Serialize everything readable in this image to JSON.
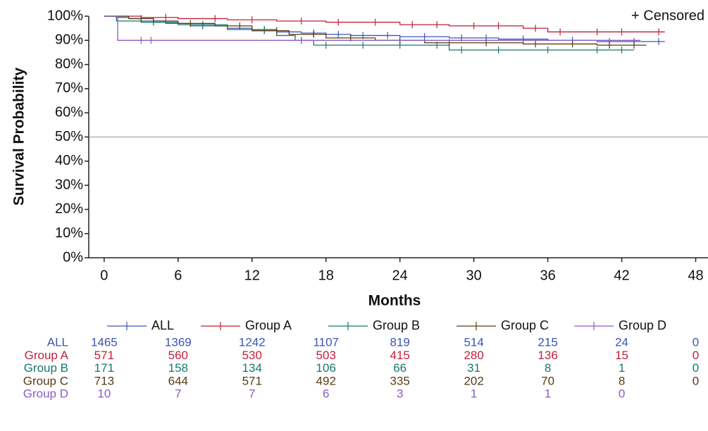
{
  "chart_data": {
    "type": "step",
    "ylabel": "Survival Probability",
    "xlabel": "Months",
    "censor_note": "+ Censored",
    "xlim": [
      -1.25,
      49
    ],
    "xticks": [
      0,
      6,
      12,
      18,
      24,
      30,
      36,
      42,
      48
    ],
    "ylim": [
      0,
      100
    ],
    "yticks": [
      {
        "value": 0,
        "label": "0%"
      },
      {
        "value": 10,
        "label": "10%"
      },
      {
        "value": 20,
        "label": "20%"
      },
      {
        "value": 30,
        "label": "30%"
      },
      {
        "value": 40,
        "label": "40%"
      },
      {
        "value": 50,
        "label": "50%"
      },
      {
        "value": 60,
        "label": "60%"
      },
      {
        "value": 70,
        "label": "70%"
      },
      {
        "value": 80,
        "label": "80%"
      },
      {
        "value": 90,
        "label": "90%"
      },
      {
        "value": 100,
        "label": "100%"
      }
    ],
    "reference_line": 50,
    "series": [
      {
        "name": "ALL",
        "color": "#3b55b5",
        "x": [
          0,
          1,
          2,
          3,
          5,
          7,
          10,
          12,
          14,
          16,
          18,
          20,
          24,
          28,
          32,
          36,
          40,
          45.5
        ],
        "values": [
          100,
          99.5,
          99,
          98,
          97,
          96,
          95,
          94,
          93.5,
          93,
          92.5,
          92,
          91.5,
          91,
          90.5,
          90,
          89.5,
          89.5
        ],
        "censored_x": [
          4,
          8,
          13,
          17,
          19,
          21,
          23,
          26,
          29,
          31,
          34,
          38,
          41,
          43,
          45
        ],
        "censored_y": [
          98,
          96,
          94,
          93,
          92.5,
          92,
          92,
          91.5,
          91,
          91,
          90.5,
          90,
          89.5,
          89.5,
          89.5
        ],
        "at_risk": [
          1465,
          1369,
          1242,
          1107,
          819,
          514,
          215,
          24,
          0
        ]
      },
      {
        "name": "Group A",
        "color": "#c41f3b",
        "x": [
          0,
          3,
          6,
          10,
          14,
          18,
          24,
          28,
          34,
          36,
          45.5
        ],
        "values": [
          100,
          99.5,
          99,
          98.5,
          98,
          97.5,
          96.5,
          96,
          95,
          93.5,
          93.5
        ],
        "censored_x": [
          5,
          9,
          12,
          16,
          19,
          22,
          25,
          27,
          30,
          32,
          35,
          37,
          40,
          42,
          45
        ],
        "censored_y": [
          99.5,
          99,
          98.5,
          98,
          97.5,
          97.5,
          96.5,
          96.5,
          96,
          96,
          95,
          93.5,
          93.5,
          93.5,
          93.5
        ],
        "at_risk": [
          571,
          560,
          530,
          503,
          415,
          280,
          136,
          15,
          0
        ]
      },
      {
        "name": "Group B",
        "color": "#17796d",
        "x": [
          0,
          1,
          3,
          6,
          10,
          14,
          15.5,
          17,
          28,
          43
        ],
        "values": [
          100,
          98,
          97.5,
          96.5,
          94.5,
          92,
          90,
          88,
          86,
          86
        ],
        "censored_x": [
          4,
          8,
          13,
          16,
          18,
          21,
          24,
          27,
          29,
          32,
          36,
          40,
          42
        ],
        "censored_y": [
          97.5,
          96.5,
          94.5,
          90,
          88,
          88,
          88,
          88,
          86,
          86,
          86,
          86,
          86
        ],
        "at_risk": [
          171,
          158,
          134,
          106,
          66,
          31,
          8,
          1,
          0
        ]
      },
      {
        "name": "Group C",
        "color": "#5b3b14",
        "x": [
          0,
          2,
          4,
          6,
          9,
          12,
          15,
          18,
          22,
          26,
          34,
          40,
          44
        ],
        "values": [
          100,
          99,
          98,
          97,
          96,
          94,
          92.5,
          91,
          90,
          89,
          88.5,
          88,
          88
        ],
        "censored_x": [
          3,
          7,
          11,
          14,
          17,
          20,
          24,
          28,
          31,
          35,
          38,
          41,
          43
        ],
        "censored_y": [
          99,
          97,
          96,
          94,
          92.5,
          91,
          90,
          89,
          89,
          88.5,
          88.5,
          88,
          88
        ],
        "at_risk": [
          713,
          644,
          571,
          492,
          335,
          202,
          70,
          8,
          0
        ]
      },
      {
        "name": "Group D",
        "color": "#8a5cc4",
        "x": [
          0,
          1.1,
          43.5
        ],
        "values": [
          100,
          90,
          90
        ],
        "censored_x": [
          3,
          3.8
        ],
        "censored_y": [
          90,
          90
        ],
        "at_risk": [
          10,
          7,
          7,
          6,
          3,
          1,
          1,
          0,
          null
        ]
      }
    ]
  }
}
